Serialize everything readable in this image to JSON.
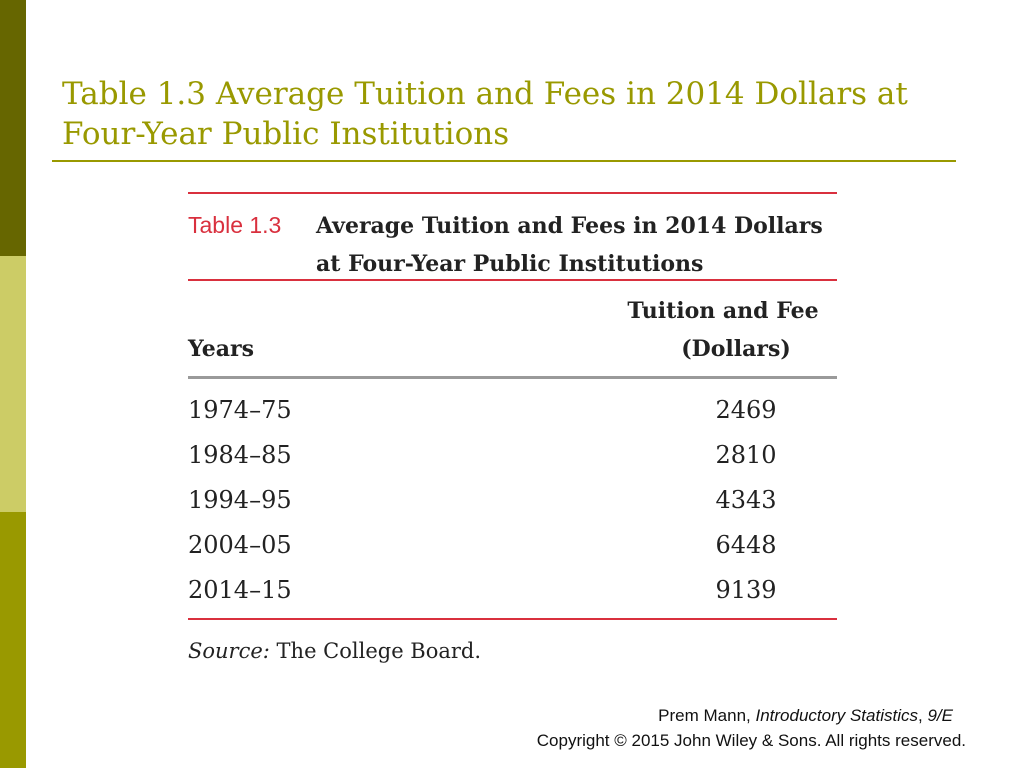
{
  "slide": {
    "title": "Table 1.3 Average Tuition and Fees in 2014 Dollars at Four-Year Public Institutions",
    "accent_color": "#999900",
    "sidebar_colors": [
      "#666600",
      "#cccc66",
      "#999900"
    ]
  },
  "table": {
    "label": "Table 1.3",
    "caption": "Average Tuition and Fees in 2014 Dollars at Four-Year Public Institutions",
    "label_color": "#d9303e",
    "rule_color": "#d9303e",
    "columns": {
      "years": "Years",
      "tuition_line1": "Tuition and Fee",
      "tuition_line2": "(Dollars)"
    },
    "rows": [
      {
        "year": "1974–75",
        "value": "2469"
      },
      {
        "year": "1984–85",
        "value": "2810"
      },
      {
        "year": "1994–95",
        "value": "4343"
      },
      {
        "year": "2004–05",
        "value": "6448"
      },
      {
        "year": "2014–15",
        "value": "9139"
      }
    ],
    "source_label": "Source:",
    "source_text": "The College Board."
  },
  "footer": {
    "author": "Prem Mann,",
    "book": "Introductory Statistics",
    "edition": "9/E",
    "copyright": "Copyright © 2015 John Wiley & Sons. All rights reserved."
  }
}
